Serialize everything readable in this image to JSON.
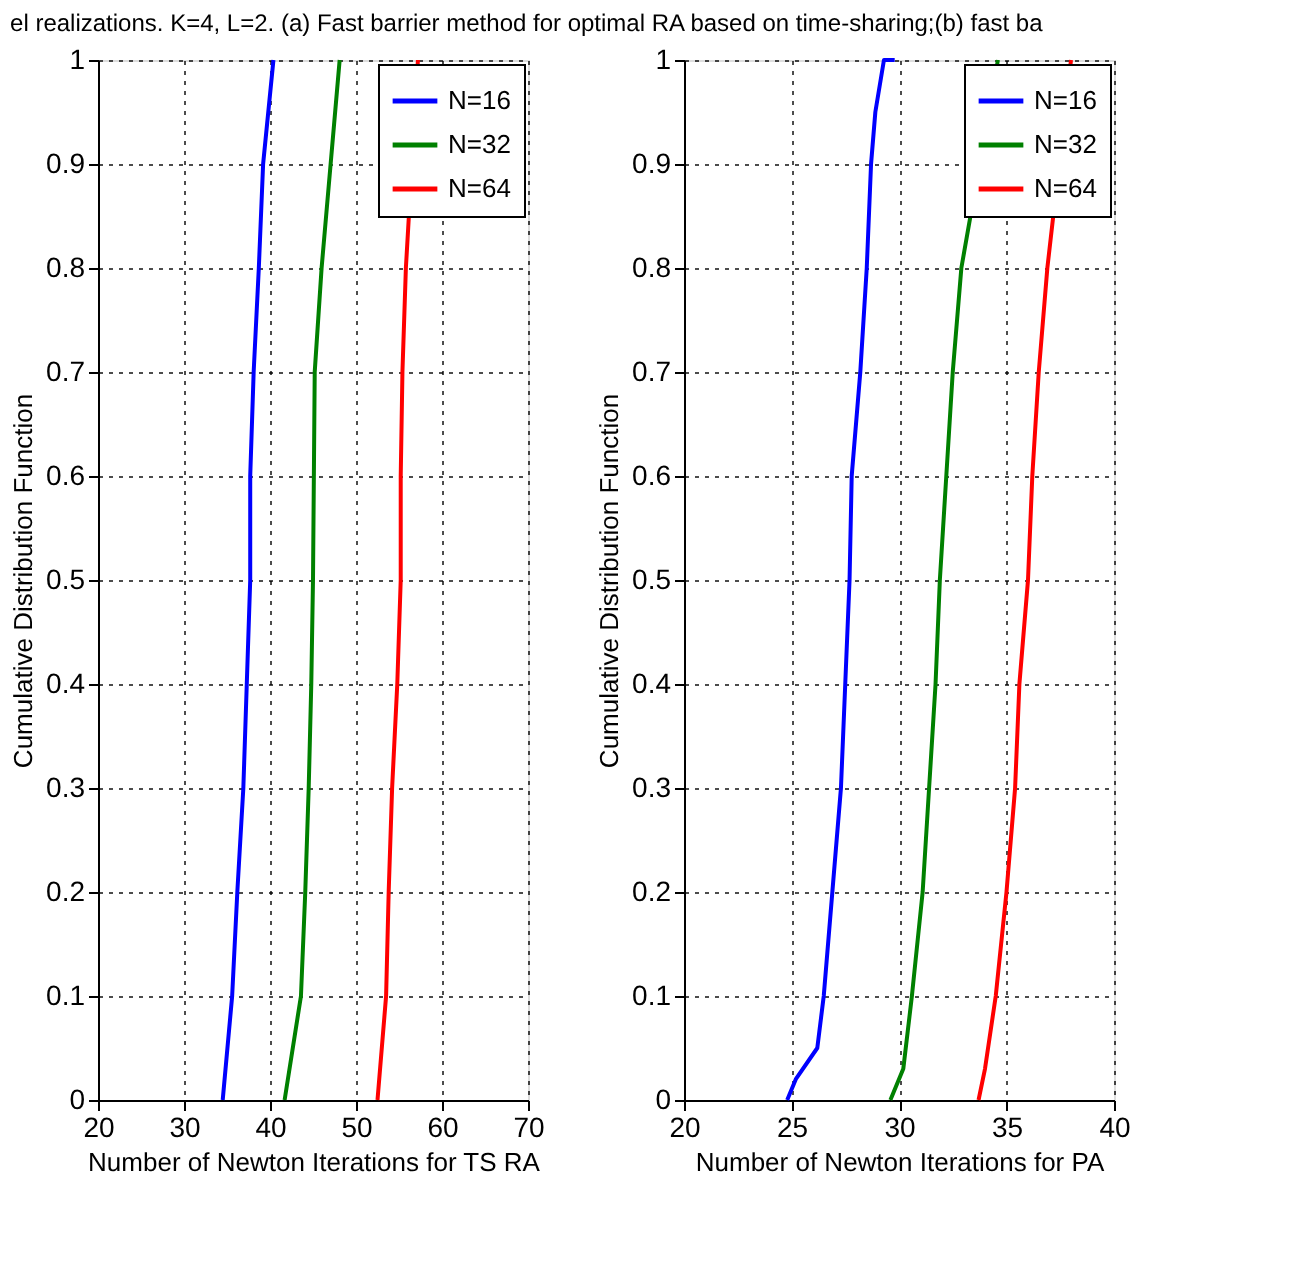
{
  "chart_data": [
    {
      "type": "line",
      "title": "el realizations. K=4, L=2. (a) Fast barrier method for optimal RA based on time-sharing;(b) fast ba",
      "xlabel": "Number of Newton Iterations for TS RA",
      "ylabel": "Cumulative Distribution Function",
      "xlim": [
        20,
        70
      ],
      "xticks": [
        20,
        30,
        40,
        50,
        60,
        70
      ],
      "ylim": [
        0,
        1
      ],
      "yticks": [
        0,
        0.1,
        0.2,
        0.3,
        0.4,
        0.5,
        0.6,
        0.7,
        0.8,
        0.9,
        1
      ],
      "grid": true,
      "legend": "top right",
      "line_style": "solid",
      "marker": "none",
      "series": [
        {
          "name": "N=16",
          "color": "#0000ff",
          "x": [
            34.5,
            35.6,
            36.2,
            36.9,
            37.3,
            37.7,
            37.7,
            38.1,
            38.7,
            39.2,
            40.4
          ],
          "values": [
            0,
            0.1,
            0.2,
            0.3,
            0.4,
            0.5,
            0.6,
            0.7,
            0.8,
            0.9,
            1
          ]
        },
        {
          "name": "N=32",
          "color": "#008000",
          "x": [
            41.7,
            43.6,
            44.1,
            44.5,
            44.8,
            45.0,
            45.1,
            45.2,
            46.0,
            48.1
          ],
          "values": [
            0,
            0.1,
            0.2,
            0.3,
            0.4,
            0.5,
            0.6,
            0.7,
            0.8,
            1
          ]
        },
        {
          "name": "N=64",
          "color": "#ff0000",
          "x": [
            52.5,
            53.5,
            53.8,
            54.2,
            54.8,
            55.2,
            55.2,
            55.4,
            55.8,
            57.2
          ],
          "values": [
            0,
            0.1,
            0.2,
            0.3,
            0.4,
            0.5,
            0.6,
            0.7,
            0.8,
            1
          ]
        }
      ]
    },
    {
      "type": "line",
      "xlabel": "Number of Newton Iterations for PA",
      "ylabel": "Cumulative Distribution Function",
      "xlim": [
        20,
        40
      ],
      "xticks": [
        20,
        25,
        30,
        35,
        40
      ],
      "ylim": [
        0,
        1
      ],
      "yticks": [
        0,
        0.1,
        0.2,
        0.3,
        0.4,
        0.5,
        0.6,
        0.7,
        0.8,
        0.9,
        1
      ],
      "grid": true,
      "legend": "top right",
      "line_style": "solid",
      "marker": "none",
      "series": [
        {
          "name": "N=16",
          "color": "#0000ff",
          "x": [
            24.8,
            25.2,
            26.2,
            26.5,
            26.9,
            27.3,
            27.5,
            27.7,
            27.8,
            28.2,
            28.5,
            28.7,
            28.9,
            29.3,
            29.8
          ],
          "values": [
            0,
            0.02,
            0.05,
            0.1,
            0.2,
            0.3,
            0.4,
            0.5,
            0.6,
            0.7,
            0.8,
            0.9,
            0.95,
            1,
            1
          ]
        },
        {
          "name": "N=32",
          "color": "#008000",
          "x": [
            29.6,
            30.2,
            30.6,
            31.1,
            31.4,
            31.7,
            31.9,
            32.2,
            32.5,
            32.9,
            34.6
          ],
          "values": [
            0,
            0.03,
            0.1,
            0.2,
            0.3,
            0.4,
            0.5,
            0.6,
            0.7,
            0.8,
            1
          ]
        },
        {
          "name": "N=64",
          "color": "#ff0000",
          "x": [
            33.7,
            34.0,
            34.5,
            35.0,
            35.4,
            35.6,
            36.0,
            36.2,
            36.5,
            36.9,
            38.0
          ],
          "values": [
            0,
            0.03,
            0.1,
            0.2,
            0.3,
            0.4,
            0.5,
            0.6,
            0.7,
            0.8,
            1
          ]
        }
      ]
    }
  ]
}
